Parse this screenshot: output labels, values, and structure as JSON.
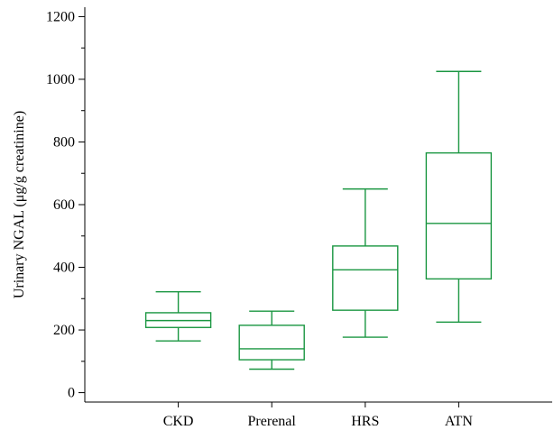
{
  "chart_data": {
    "type": "box",
    "ylabel": "Urinary NGAL (μg/g creatinine)",
    "ylim": [
      -30,
      1230
    ],
    "y_ticks": [
      0,
      200,
      400,
      600,
      800,
      1000,
      1200
    ],
    "y_minor_ticks": [
      100,
      300,
      500,
      700,
      900,
      1100
    ],
    "categories": [
      "CKD",
      "Prerenal",
      "HRS",
      "ATN"
    ],
    "boxes": [
      {
        "category": "CKD",
        "whisker_low": 165,
        "q1": 208,
        "median": 230,
        "q3": 255,
        "whisker_high": 322
      },
      {
        "category": "Prerenal",
        "whisker_low": 75,
        "q1": 105,
        "median": 140,
        "q3": 215,
        "whisker_high": 260
      },
      {
        "category": "HRS",
        "whisker_low": 177,
        "q1": 263,
        "median": 392,
        "q3": 468,
        "whisker_high": 650
      },
      {
        "category": "ATN",
        "whisker_low": 225,
        "q1": 363,
        "median": 540,
        "q3": 765,
        "whisker_high": 1025
      }
    ],
    "box_color": "#1a9641",
    "axis_color": "#000000",
    "grid": false
  }
}
